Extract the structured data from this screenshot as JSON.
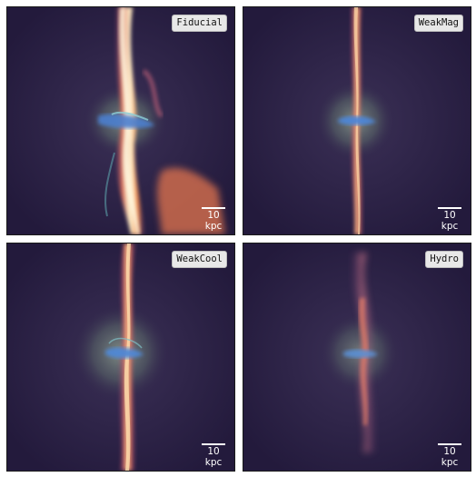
{
  "panels": [
    {
      "label": "Fiducial",
      "scale_label": "10 kpc"
    },
    {
      "label": "WeakMag",
      "scale_label": "10 kpc"
    },
    {
      "label": "WeakCool",
      "scale_label": "10 kpc"
    },
    {
      "label": "Hydro",
      "scale_label": "10 kpc"
    }
  ],
  "colors": {
    "background": "#2a1d45",
    "halo": "#6d7f74",
    "jet_core": "#fff3c8",
    "jet_mid": "#f39a55",
    "jet_edge": "#9c4e78",
    "disk": "#5c8fd8"
  }
}
